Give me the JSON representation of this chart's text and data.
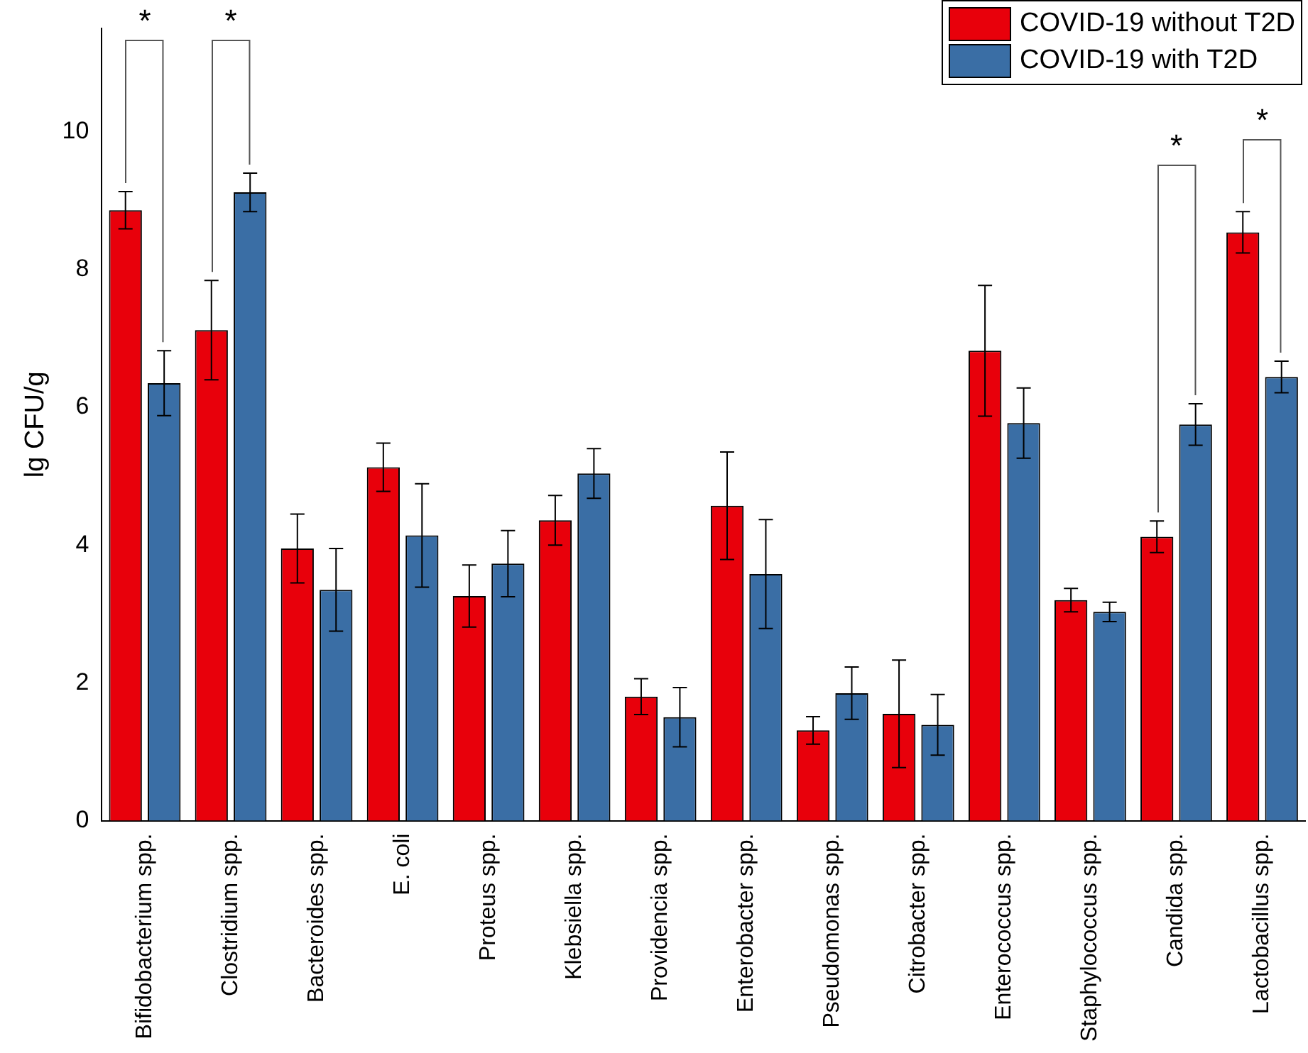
{
  "chart_data": {
    "type": "bar",
    "ylabel": "lg CFU/g",
    "categories": [
      "Bifidobacterium spp.",
      "Clostridium spp.",
      "Bacteroides spp.",
      "E. coli",
      "Proteus spp.",
      "Klebsiella spp.",
      "Providencia spp.",
      "Enterobacter spp.",
      "Pseudomonas spp.",
      "Citrobacter spp.",
      "Enterococcus spp.",
      "Staphylococcus spp.",
      "Candida spp.",
      "Lactobacillus spp."
    ],
    "series": [
      {
        "name": "COVID-19 without T2D",
        "color": "#e8000b",
        "values": [
          8.86,
          7.12,
          3.95,
          5.13,
          3.26,
          4.36,
          1.8,
          4.57,
          1.31,
          1.55,
          6.82,
          3.2,
          4.12,
          8.54
        ],
        "errors": [
          0.27,
          0.72,
          0.5,
          0.35,
          0.45,
          0.36,
          0.26,
          0.78,
          0.2,
          0.78,
          0.95,
          0.17,
          0.23,
          0.3
        ]
      },
      {
        "name": "COVID-19 with T2D",
        "color": "#3a6ea5",
        "values": [
          6.35,
          9.12,
          3.35,
          4.14,
          3.73,
          5.04,
          1.5,
          3.58,
          1.85,
          1.39,
          5.77,
          3.03,
          5.75,
          6.44
        ],
        "errors": [
          0.47,
          0.28,
          0.6,
          0.75,
          0.48,
          0.36,
          0.43,
          0.79,
          0.38,
          0.44,
          0.51,
          0.14,
          0.3,
          0.23
        ]
      }
    ],
    "ylim": [
      0,
      11.5
    ],
    "yticks": [
      0,
      2,
      4,
      6,
      8,
      10
    ],
    "grid": false,
    "legend": "top right",
    "annotations": [
      "*",
      "*",
      "*",
      "*"
    ]
  }
}
